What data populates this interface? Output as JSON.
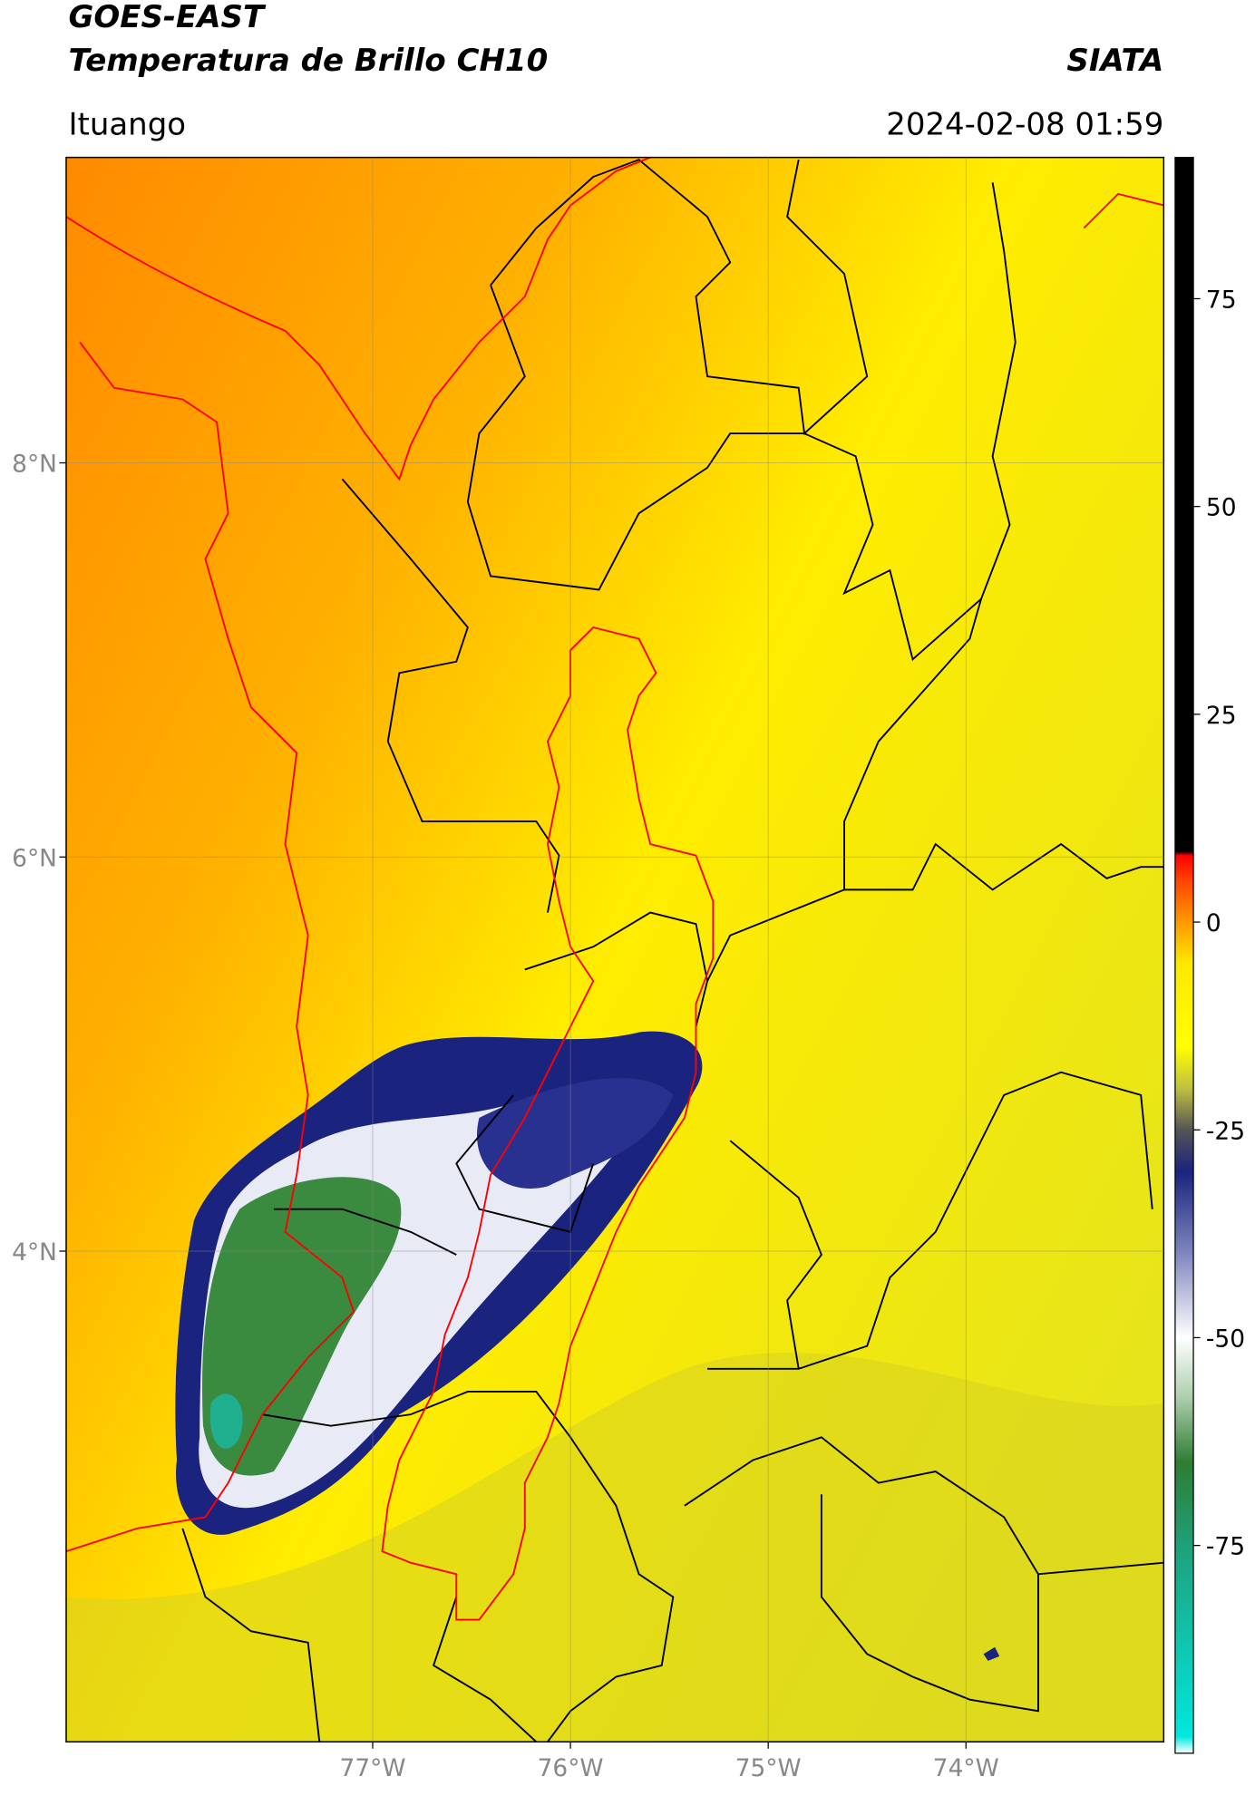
{
  "header": {
    "title": "GOES-EAST",
    "subtitle": "Temperatura de Brillo CH10",
    "source": "SIATA",
    "location": "Ituango",
    "datetime": "2024-02-08 01:59"
  },
  "map": {
    "xlim": [
      -78.55,
      -73.0
    ],
    "ylim": [
      1.51,
      9.55
    ],
    "xticks": [
      {
        "value": -77,
        "label": "77°W"
      },
      {
        "value": -76,
        "label": "76°W"
      },
      {
        "value": -75,
        "label": "75°W"
      },
      {
        "value": -74,
        "label": "74°W"
      }
    ],
    "yticks": [
      {
        "value": 8,
        "label": "8°N"
      },
      {
        "value": 6,
        "label": "6°N"
      },
      {
        "value": 4,
        "label": "4°N"
      }
    ],
    "grid": true,
    "colorbar": {
      "lim": [
        -100,
        92
      ],
      "ticks": [
        -75,
        -50,
        -25,
        0,
        25,
        50,
        75
      ],
      "colormap": [
        {
          "value": -100,
          "color": "#ffffff"
        },
        {
          "value": -98,
          "color": "#00e8e0"
        },
        {
          "value": -75,
          "color": "#1fa07a"
        },
        {
          "value": -65,
          "color": "#2e7d32"
        },
        {
          "value": -57,
          "color": "#b0d0b0"
        },
        {
          "value": -50,
          "color": "#ffffff"
        },
        {
          "value": -40,
          "color": "#8088c0"
        },
        {
          "value": -30,
          "color": "#1a237e"
        },
        {
          "value": -25,
          "color": "#555555"
        },
        {
          "value": -20,
          "color": "#c0c040"
        },
        {
          "value": -15,
          "color": "#ffff00"
        },
        {
          "value": -5,
          "color": "#ffe800"
        },
        {
          "value": 0,
          "color": "#ff9900"
        },
        {
          "value": 5,
          "color": "#ff4400"
        },
        {
          "value": 8,
          "color": "#ff0000"
        },
        {
          "value": 8.5,
          "color": "#000000"
        },
        {
          "value": 92,
          "color": "#000000"
        }
      ]
    }
  }
}
